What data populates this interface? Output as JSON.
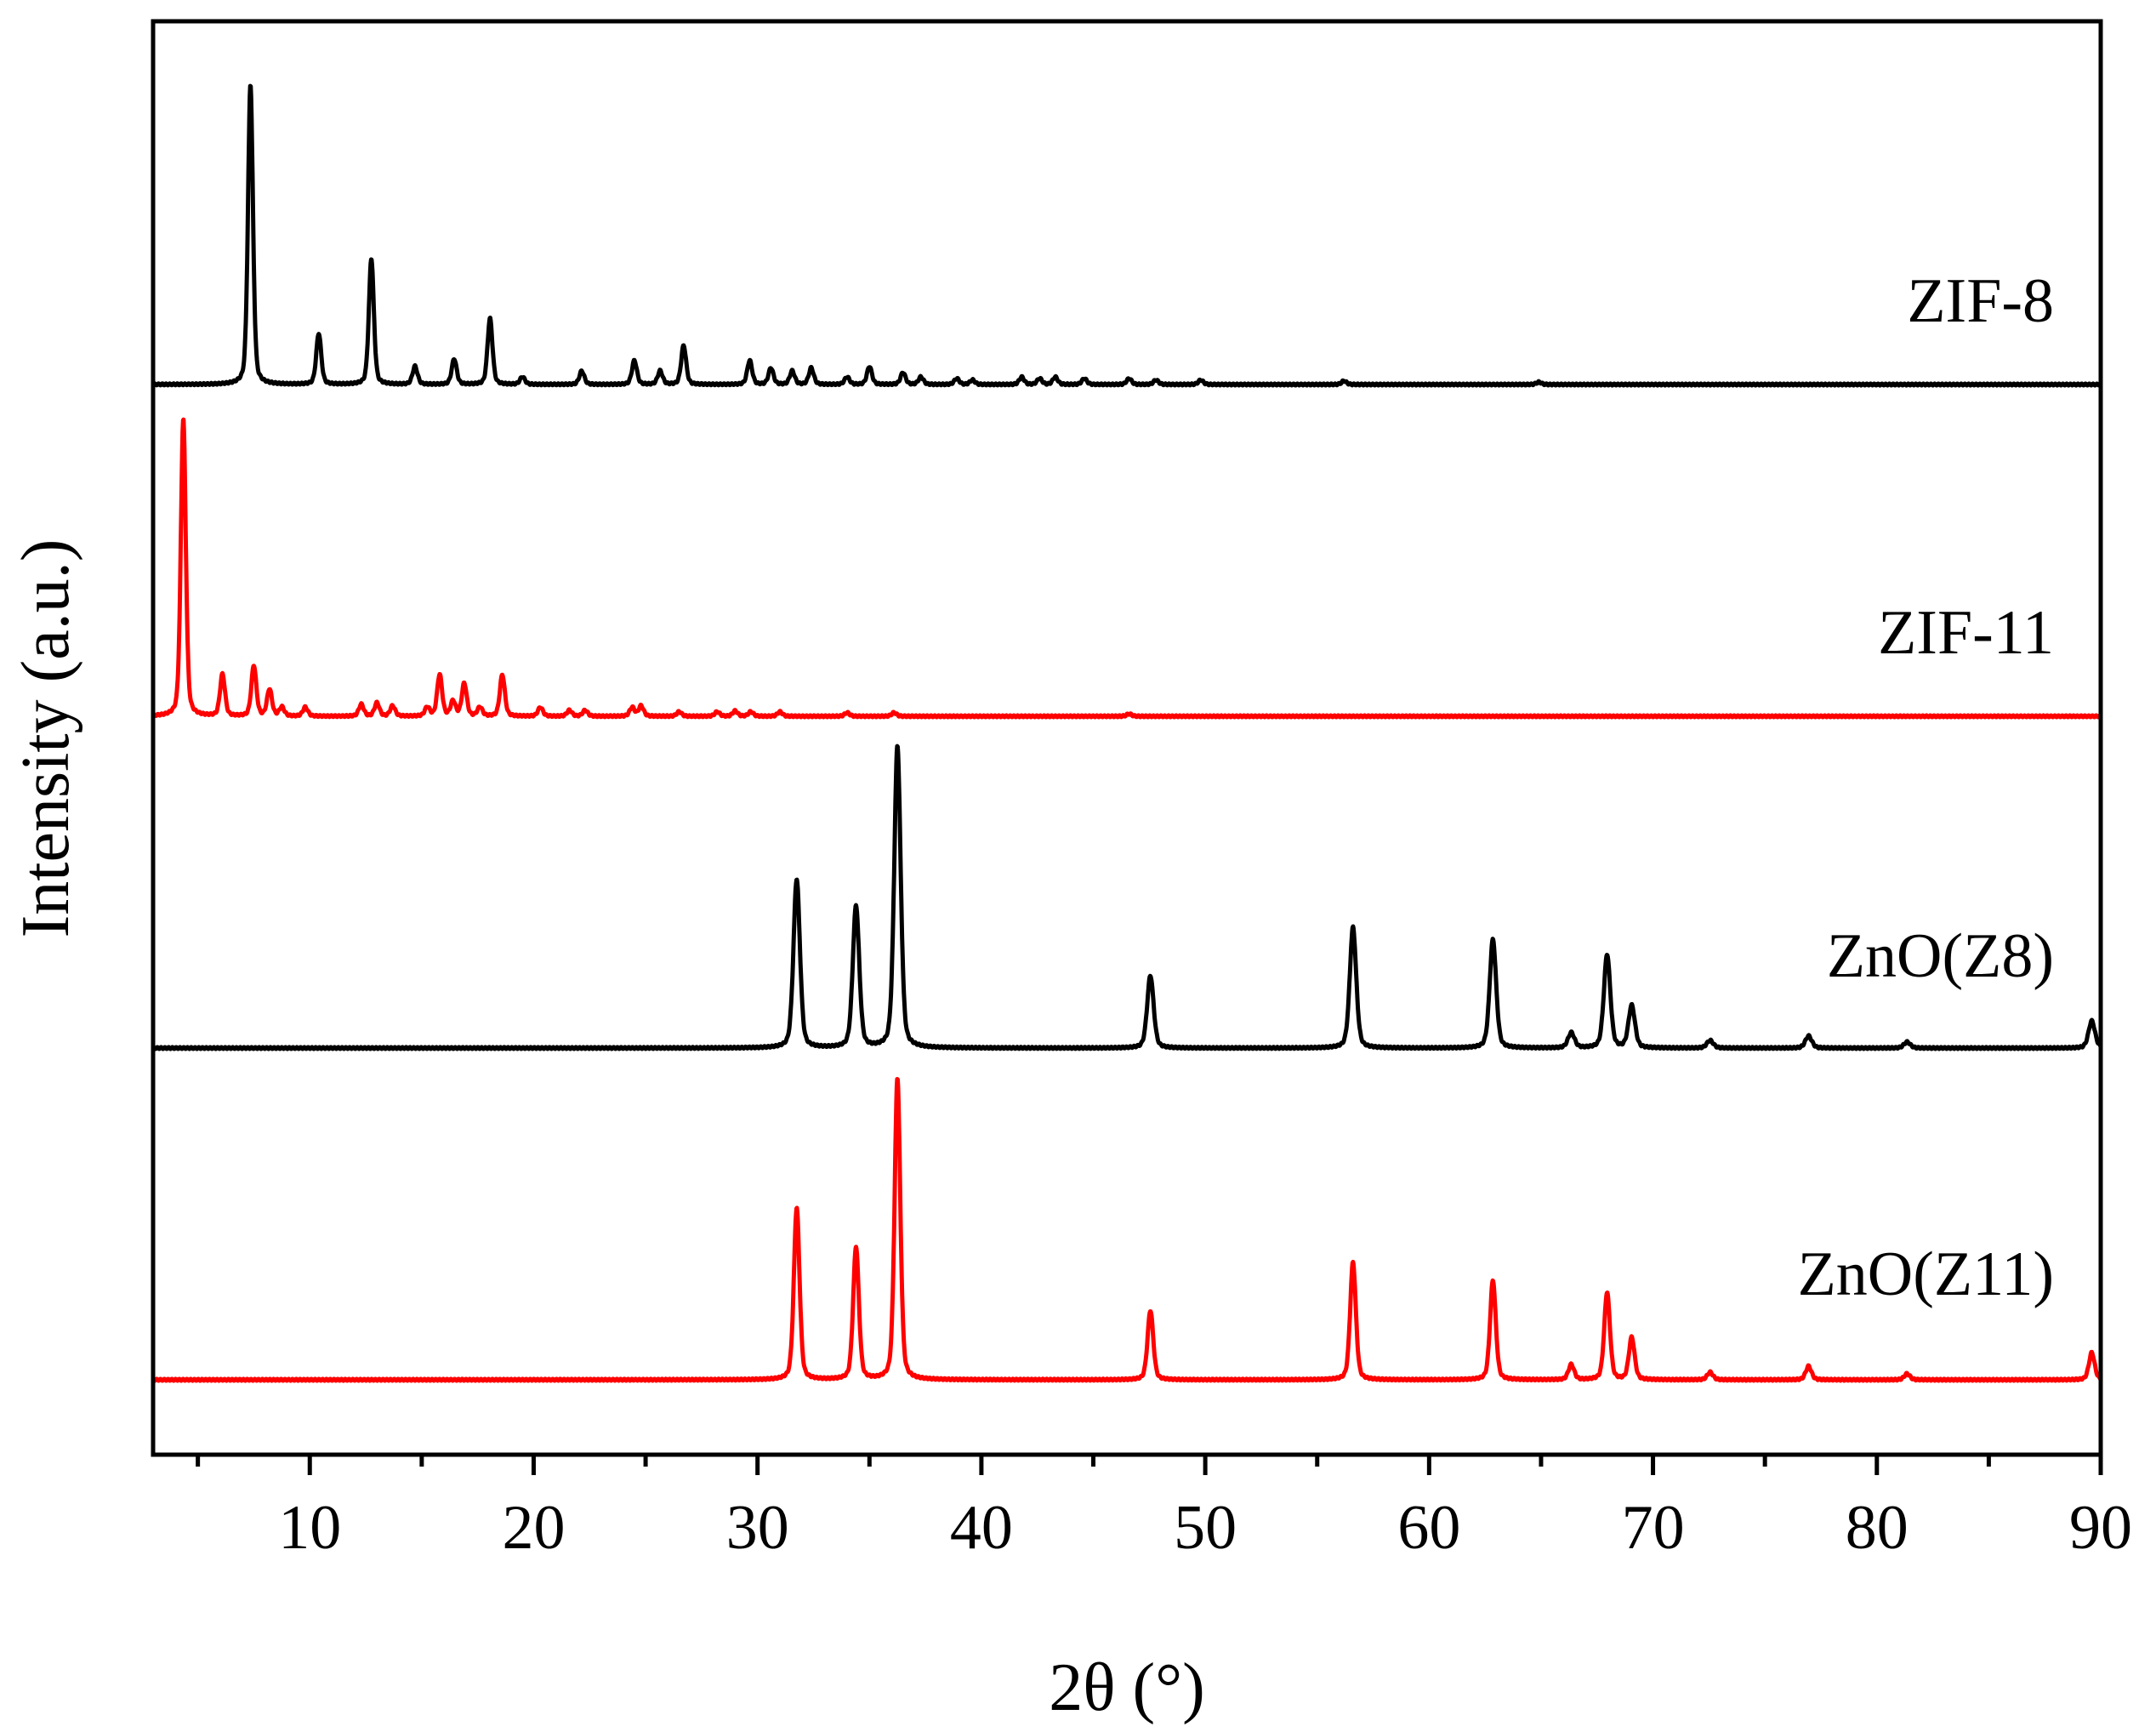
{
  "chart_data": {
    "type": "line",
    "xlabel": "2θ (°)",
    "ylabel": "Intensity (a.u.)",
    "xlim": [
      3,
      90
    ],
    "xticks_major": [
      10,
      20,
      30,
      40,
      50,
      60,
      70,
      80,
      90
    ],
    "xticks_major_labels": [
      "10",
      "20",
      "30",
      "40",
      "50",
      "60",
      "70",
      "80",
      "90"
    ],
    "xticks_minor": [
      5,
      15,
      25,
      35,
      45,
      55,
      65,
      75,
      85
    ],
    "y_axis_ticks": false,
    "grid": false,
    "legend": "labels placed next to each trace (right side)",
    "series_order_top_to_bottom": [
      "ZIF-8",
      "ZIF-11",
      "ZnO(Z8)",
      "ZnO(Z11)"
    ],
    "series": [
      {
        "name": "ZIF-8",
        "color": "#000000",
        "peaks": [
          {
            "x": 7.35,
            "y": 1.0
          },
          {
            "x": 10.4,
            "y": 0.17
          },
          {
            "x": 12.75,
            "y": 0.42
          },
          {
            "x": 14.7,
            "y": 0.06
          },
          {
            "x": 16.45,
            "y": 0.085
          },
          {
            "x": 18.05,
            "y": 0.22
          },
          {
            "x": 19.5,
            "y": 0.025
          },
          {
            "x": 22.15,
            "y": 0.045
          },
          {
            "x": 24.5,
            "y": 0.08
          },
          {
            "x": 25.65,
            "y": 0.045
          },
          {
            "x": 26.7,
            "y": 0.13
          },
          {
            "x": 29.65,
            "y": 0.08
          },
          {
            "x": 30.6,
            "y": 0.055
          },
          {
            "x": 31.55,
            "y": 0.045
          },
          {
            "x": 32.4,
            "y": 0.055
          },
          {
            "x": 34.0,
            "y": 0.025
          },
          {
            "x": 35.0,
            "y": 0.06
          },
          {
            "x": 36.5,
            "y": 0.04
          },
          {
            "x": 37.3,
            "y": 0.025
          },
          {
            "x": 38.9,
            "y": 0.02
          },
          {
            "x": 39.6,
            "y": 0.015
          },
          {
            "x": 41.8,
            "y": 0.025
          },
          {
            "x": 42.6,
            "y": 0.02
          },
          {
            "x": 43.3,
            "y": 0.025
          },
          {
            "x": 44.6,
            "y": 0.02
          },
          {
            "x": 46.6,
            "y": 0.02
          },
          {
            "x": 47.8,
            "y": 0.015
          },
          {
            "x": 49.8,
            "y": 0.015
          },
          {
            "x": 56.2,
            "y": 0.012
          },
          {
            "x": 64.9,
            "y": 0.008
          }
        ]
      },
      {
        "name": "ZIF-11",
        "color": "#ff0000",
        "peaks": [
          {
            "x": 4.35,
            "y": 1.0
          },
          {
            "x": 6.1,
            "y": 0.14
          },
          {
            "x": 7.5,
            "y": 0.17
          },
          {
            "x": 8.2,
            "y": 0.09
          },
          {
            "x": 8.75,
            "y": 0.03
          },
          {
            "x": 9.8,
            "y": 0.03
          },
          {
            "x": 12.3,
            "y": 0.04
          },
          {
            "x": 13.0,
            "y": 0.045
          },
          {
            "x": 13.7,
            "y": 0.035
          },
          {
            "x": 15.25,
            "y": 0.03
          },
          {
            "x": 15.8,
            "y": 0.14
          },
          {
            "x": 16.4,
            "y": 0.05
          },
          {
            "x": 16.9,
            "y": 0.11
          },
          {
            "x": 17.6,
            "y": 0.03
          },
          {
            "x": 18.6,
            "y": 0.14
          },
          {
            "x": 20.3,
            "y": 0.03
          },
          {
            "x": 21.6,
            "y": 0.02
          },
          {
            "x": 22.3,
            "y": 0.02
          },
          {
            "x": 24.4,
            "y": 0.03
          },
          {
            "x": 24.8,
            "y": 0.035
          },
          {
            "x": 26.5,
            "y": 0.015
          },
          {
            "x": 28.2,
            "y": 0.015
          },
          {
            "x": 29.0,
            "y": 0.018
          },
          {
            "x": 29.7,
            "y": 0.015
          },
          {
            "x": 31.0,
            "y": 0.015
          },
          {
            "x": 34.0,
            "y": 0.012
          },
          {
            "x": 36.1,
            "y": 0.012
          },
          {
            "x": 46.6,
            "y": 0.008
          }
        ]
      },
      {
        "name": "ZnO(Z8)",
        "color": "#000000",
        "peaks": [
          {
            "x": 31.75,
            "y": 0.56
          },
          {
            "x": 34.4,
            "y": 0.47
          },
          {
            "x": 36.25,
            "y": 1.0
          },
          {
            "x": 47.55,
            "y": 0.24
          },
          {
            "x": 56.6,
            "y": 0.4
          },
          {
            "x": 62.85,
            "y": 0.36
          },
          {
            "x": 66.35,
            "y": 0.05
          },
          {
            "x": 67.95,
            "y": 0.31
          },
          {
            "x": 69.05,
            "y": 0.14
          },
          {
            "x": 72.55,
            "y": 0.025
          },
          {
            "x": 76.95,
            "y": 0.04
          },
          {
            "x": 81.35,
            "y": 0.02
          },
          {
            "x": 89.6,
            "y": 0.09
          }
        ]
      },
      {
        "name": "ZnO(Z11)",
        "color": "#ff0000",
        "peaks": [
          {
            "x": 31.75,
            "y": 0.57
          },
          {
            "x": 34.4,
            "y": 0.44
          },
          {
            "x": 36.25,
            "y": 1.0
          },
          {
            "x": 47.55,
            "y": 0.23
          },
          {
            "x": 56.6,
            "y": 0.39
          },
          {
            "x": 62.85,
            "y": 0.33
          },
          {
            "x": 66.35,
            "y": 0.05
          },
          {
            "x": 67.95,
            "y": 0.29
          },
          {
            "x": 69.05,
            "y": 0.14
          },
          {
            "x": 72.55,
            "y": 0.025
          },
          {
            "x": 76.95,
            "y": 0.045
          },
          {
            "x": 81.35,
            "y": 0.02
          },
          {
            "x": 89.6,
            "y": 0.09
          }
        ]
      }
    ]
  }
}
